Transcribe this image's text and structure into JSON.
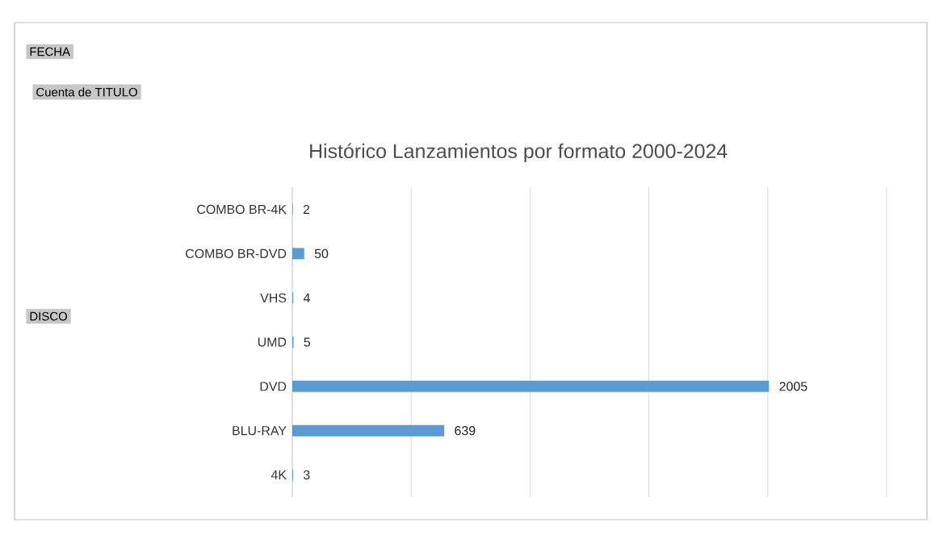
{
  "chart_data": {
    "type": "bar",
    "orientation": "horizontal",
    "title": "Histórico Lanzamientos por formato 2000-2024",
    "categories": [
      "COMBO BR-4K",
      "COMBO BR-DVD",
      "VHS",
      "UMD",
      "DVD",
      "BLU-RAY",
      "4K"
    ],
    "values": [
      2,
      50,
      4,
      5,
      2005,
      639,
      3
    ],
    "color": "#5b9bd5",
    "xlim": [
      0,
      2500
    ],
    "xticks": [
      {
        "value": 0,
        "label": null
      },
      {
        "value": 500,
        "label": null
      },
      {
        "value": 1000,
        "label": null
      },
      {
        "value": 1500,
        "label": null
      },
      {
        "value": 2000,
        "label": null
      },
      {
        "value": 2500,
        "label": null
      }
    ],
    "grid": "x",
    "data_labels": true,
    "tick_labels": "y",
    "annotations": [
      "FECHA",
      "Cuenta de TITULO",
      "DISCO"
    ]
  }
}
